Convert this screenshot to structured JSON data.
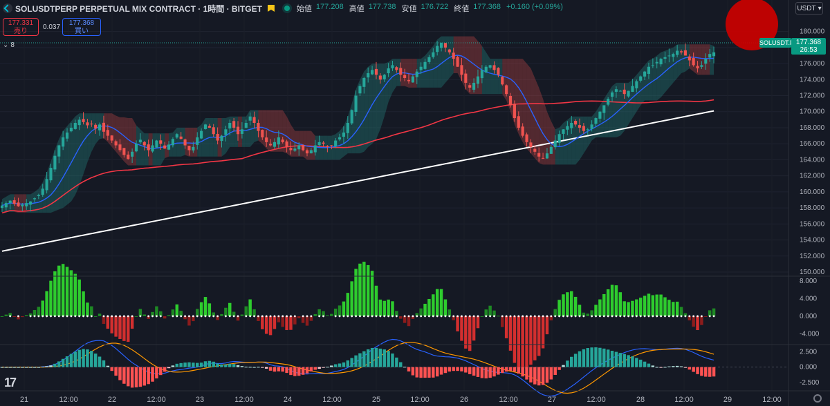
{
  "header": {
    "title": "SOLUSDTPERP PERPETUAL MIX CONTRACT · 1時間 · BITGET",
    "ohlc": [
      {
        "label": "始値",
        "value": "177.208"
      },
      {
        "label": "高値",
        "value": "177.738"
      },
      {
        "label": "安値",
        "value": "176.722"
      },
      {
        "label": "終値",
        "value": "177.368"
      }
    ],
    "change": "+0.160 (+0.09%)"
  },
  "trade": {
    "sell_price": "177.331",
    "sell_label": "売り",
    "spread": "0.037",
    "buy_price": "177.368",
    "buy_label": "買い"
  },
  "collapse_count": "8",
  "currency": "USDT",
  "price_tag": {
    "symbol": "SOLUSDT.P",
    "price": "177.368",
    "countdown": "26:53"
  },
  "colors": {
    "up": "#26a69a",
    "down": "#ef5350",
    "accent_red": "#cc0000"
  },
  "icons": [
    "bitget-logo-icon",
    "flag-icon",
    "live-dot-icon",
    "chevron-down-icon",
    "tradingview-logo-icon",
    "gear-icon"
  ],
  "chart_data": [
    {
      "type": "candlestick",
      "y_axis_labels": [
        "150.000",
        "152.000",
        "154.000",
        "156.000",
        "158.000",
        "160.000",
        "162.000",
        "164.000",
        "166.000",
        "168.000",
        "170.000",
        "172.000",
        "174.000",
        "176.000",
        "178.000",
        "180.000"
      ],
      "ylim": [
        150,
        181
      ],
      "x_axis_labels": [
        "21",
        "12:00",
        "22",
        "12:00",
        "23",
        "12:00",
        "24",
        "12:00",
        "25",
        "12:00",
        "26",
        "12:00",
        "27",
        "12:00",
        "28",
        "12:00",
        "29",
        "12:00"
      ],
      "close_series": [
        158.3,
        158.6,
        158.9,
        158.5,
        158.2,
        158.4,
        158.6,
        158.8,
        159.2,
        159.6,
        160.4,
        161.6,
        163.0,
        164.5,
        165.8,
        166.8,
        167.4,
        168.0,
        168.6,
        169.0,
        168.7,
        168.3,
        168.5,
        167.9,
        168.4,
        167.5,
        167.0,
        166.4,
        165.8,
        165.2,
        164.6,
        164.1,
        165.0,
        166.0,
        166.5,
        165.8,
        165.2,
        165.8,
        166.4,
        166.0,
        165.4,
        165.9,
        166.6,
        167.2,
        166.6,
        165.8,
        165.2,
        165.6,
        166.8,
        167.6,
        168.4,
        168.0,
        167.2,
        166.4,
        167.0,
        167.8,
        168.6,
        168.0,
        167.2,
        167.8,
        168.6,
        169.4,
        168.6,
        167.6,
        166.8,
        166.2,
        165.8,
        166.2,
        166.8,
        166.2,
        165.6,
        165.2,
        165.4,
        165.8,
        165.2,
        164.8,
        165.2,
        165.8,
        166.2,
        166.0,
        165.6,
        165.8,
        166.4,
        166.8,
        167.4,
        168.6,
        170.2,
        172.0,
        173.2,
        174.2,
        174.8,
        175.2,
        174.6,
        174.0,
        174.6,
        175.4,
        175.8,
        175.2,
        174.6,
        174.2,
        173.8,
        174.4,
        175.0,
        175.6,
        176.2,
        176.8,
        177.4,
        178.2,
        178.6,
        178.0,
        177.4,
        176.6,
        175.6,
        174.6,
        173.6,
        173.0,
        173.6,
        174.4,
        175.2,
        175.6,
        175.8,
        175.2,
        174.6,
        173.4,
        172.2,
        170.8,
        169.2,
        168.0,
        167.0,
        166.2,
        165.6,
        165.0,
        164.4,
        164.2,
        164.8,
        165.6,
        166.4,
        167.2,
        167.8,
        168.2,
        168.6,
        168.4,
        168.0,
        167.6,
        167.8,
        168.4,
        169.2,
        170.0,
        170.8,
        171.6,
        172.4,
        172.8,
        172.6,
        172.2,
        172.6,
        173.2,
        173.8,
        174.4,
        175.0,
        175.6,
        175.8,
        176.2,
        176.6,
        176.8,
        177.0,
        177.2,
        177.6,
        177.4,
        177.0,
        176.4,
        175.8,
        175.4,
        175.8,
        176.6,
        177.2,
        177.4
      ],
      "series": [
        {
          "name": "MA-fast",
          "color": "#2962ff"
        },
        {
          "name": "MA-mid",
          "color": "#f23645"
        },
        {
          "name": "MA-slow",
          "color": "#ffffff"
        }
      ]
    },
    {
      "type": "bar",
      "y_axis_labels": [
        "8.000",
        "4.000",
        "0.000",
        "-4.000"
      ],
      "ylim": [
        -6,
        8.5
      ]
    },
    {
      "type": "line",
      "y_axis_labels": [
        "2.500",
        "0.000",
        "-2.500"
      ],
      "ylim": [
        -3.5,
        3.2
      ]
    }
  ]
}
